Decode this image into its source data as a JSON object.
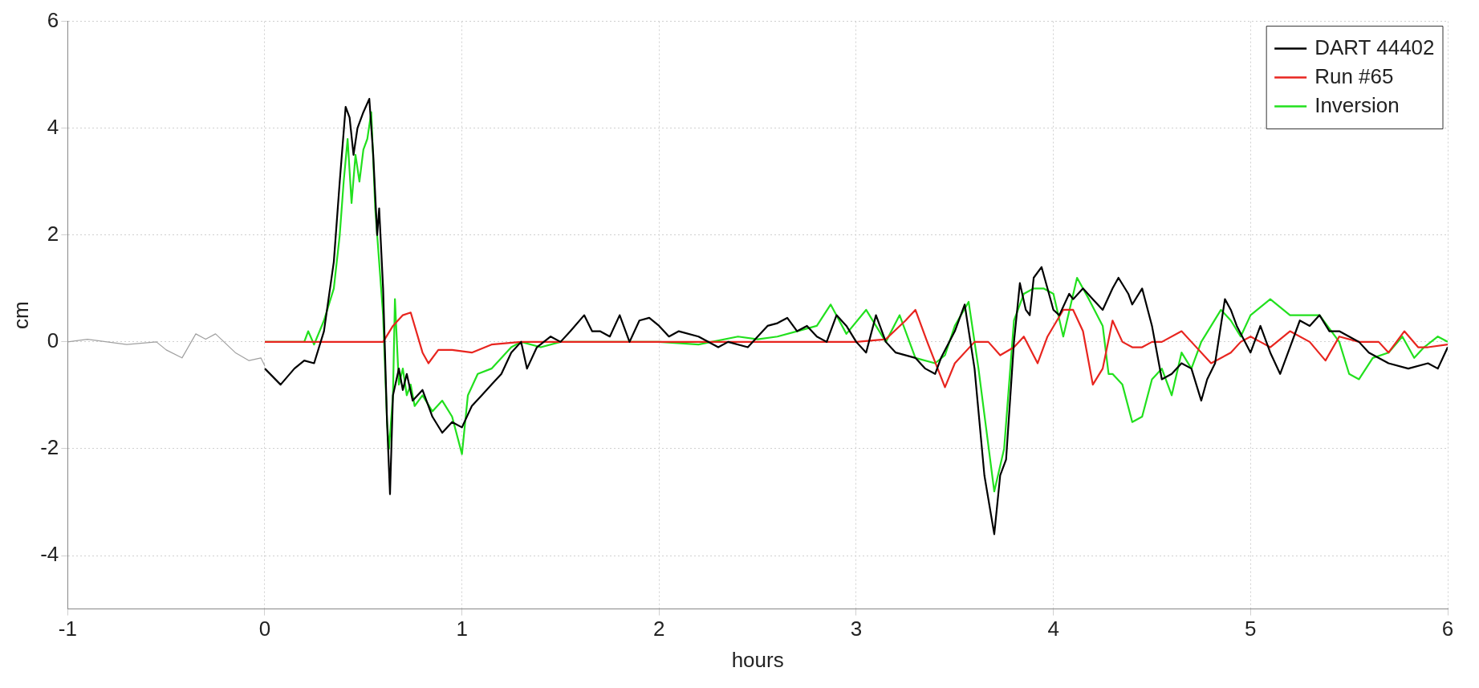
{
  "chart_data": {
    "type": "line",
    "xlabel": "hours",
    "ylabel": "cm",
    "xlim": [
      -1,
      6
    ],
    "ylim": [
      -5,
      6
    ],
    "xticks": [
      -1,
      0,
      1,
      2,
      3,
      4,
      5,
      6
    ],
    "yticks": [
      -4,
      -2,
      0,
      2,
      4,
      6
    ],
    "grid": true,
    "legend": "top right",
    "line_style": "solid",
    "marker": "none",
    "series": [
      {
        "color": "#a0a0a0",
        "x": [
          -1,
          -0.9,
          -0.7,
          -0.55,
          -0.5,
          -0.42,
          -0.35,
          -0.3,
          -0.25,
          -0.15,
          -0.08,
          -0.02,
          0
        ],
        "values": [
          0,
          0.05,
          -0.05,
          0,
          -0.15,
          -0.3,
          0.15,
          0.05,
          0.15,
          -0.2,
          -0.35,
          -0.3,
          -0.45
        ]
      },
      {
        "name": "DART 44402",
        "color": "#000000",
        "x": [
          0,
          0.08,
          0.15,
          0.2,
          0.25,
          0.3,
          0.35,
          0.38,
          0.41,
          0.43,
          0.45,
          0.47,
          0.5,
          0.53,
          0.55,
          0.57,
          0.58,
          0.6,
          0.62,
          0.635,
          0.65,
          0.68,
          0.7,
          0.72,
          0.75,
          0.8,
          0.85,
          0.9,
          0.95,
          1.0,
          1.05,
          1.1,
          1.15,
          1.2,
          1.25,
          1.3,
          1.33,
          1.38,
          1.45,
          1.5,
          1.55,
          1.62,
          1.66,
          1.7,
          1.75,
          1.8,
          1.85,
          1.9,
          1.95,
          2.0,
          2.05,
          2.1,
          2.2,
          2.3,
          2.35,
          2.45,
          2.55,
          2.6,
          2.65,
          2.7,
          2.75,
          2.8,
          2.85,
          2.9,
          2.95,
          3.0,
          3.05,
          3.1,
          3.15,
          3.2,
          3.3,
          3.35,
          3.4,
          3.43,
          3.5,
          3.55,
          3.6,
          3.65,
          3.7,
          3.73,
          3.76,
          3.8,
          3.83,
          3.86,
          3.88,
          3.9,
          3.94,
          3.97,
          4.0,
          4.03,
          4.08,
          4.1,
          4.15,
          4.2,
          4.25,
          4.3,
          4.33,
          4.38,
          4.4,
          4.45,
          4.5,
          4.55,
          4.6,
          4.65,
          4.7,
          4.75,
          4.78,
          4.82,
          4.87,
          4.9,
          4.93,
          5.0,
          5.05,
          5.1,
          5.15,
          5.2,
          5.25,
          5.3,
          5.35,
          5.4,
          5.45,
          5.5,
          5.55,
          5.6,
          5.7,
          5.8,
          5.9,
          5.95,
          6.0
        ],
        "values": [
          -0.5,
          -0.8,
          -0.5,
          -0.35,
          -0.4,
          0.2,
          1.5,
          3.0,
          4.4,
          4.2,
          3.5,
          4.0,
          4.3,
          4.55,
          3.5,
          2.0,
          2.5,
          1.0,
          -1.5,
          -2.85,
          -1.0,
          -0.5,
          -0.9,
          -0.6,
          -1.1,
          -0.9,
          -1.4,
          -1.7,
          -1.5,
          -1.6,
          -1.2,
          -1.0,
          -0.8,
          -0.6,
          -0.2,
          0.0,
          -0.5,
          -0.1,
          0.1,
          0.0,
          0.2,
          0.5,
          0.2,
          0.2,
          0.1,
          0.5,
          0.0,
          0.4,
          0.45,
          0.3,
          0.1,
          0.2,
          0.1,
          -0.1,
          0.0,
          -0.1,
          0.3,
          0.35,
          0.45,
          0.2,
          0.3,
          0.1,
          0.0,
          0.5,
          0.3,
          0.0,
          -0.2,
          0.5,
          0.0,
          -0.2,
          -0.3,
          -0.5,
          -0.6,
          -0.3,
          0.2,
          0.7,
          -0.5,
          -2.5,
          -3.6,
          -2.5,
          -2.2,
          0.0,
          1.1,
          0.6,
          0.5,
          1.2,
          1.4,
          1.0,
          0.6,
          0.5,
          0.9,
          0.8,
          1.0,
          0.8,
          0.6,
          1.0,
          1.2,
          0.9,
          0.7,
          1.0,
          0.3,
          -0.7,
          -0.6,
          -0.4,
          -0.5,
          -1.1,
          -0.7,
          -0.4,
          0.8,
          0.6,
          0.3,
          -0.2,
          0.3,
          -0.2,
          -0.6,
          -0.1,
          0.4,
          0.3,
          0.5,
          0.2,
          0.2,
          0.1,
          0.0,
          -0.2,
          -0.4,
          -0.5,
          -0.4,
          -0.5,
          -0.1
        ]
      },
      {
        "name": "Run #65",
        "color": "#e8251f",
        "x": [
          0,
          0.6,
          0.65,
          0.7,
          0.74,
          0.8,
          0.83,
          0.88,
          0.95,
          1.05,
          1.15,
          1.3,
          3.0,
          3.15,
          3.25,
          3.3,
          3.36,
          3.45,
          3.5,
          3.6,
          3.67,
          3.73,
          3.8,
          3.85,
          3.92,
          3.97,
          4.05,
          4.1,
          4.15,
          4.2,
          4.25,
          4.3,
          4.35,
          4.4,
          4.45,
          4.5,
          4.55,
          4.65,
          4.7,
          4.8,
          4.9,
          4.95,
          5.0,
          5.05,
          5.1,
          5.2,
          5.3,
          5.38,
          5.45,
          5.55,
          5.65,
          5.7,
          5.78,
          5.85,
          5.9,
          6.0
        ],
        "values": [
          0,
          0,
          0.3,
          0.5,
          0.55,
          -0.2,
          -0.4,
          -0.15,
          -0.15,
          -0.2,
          -0.05,
          0.0,
          0.0,
          0.05,
          0.4,
          0.6,
          0.0,
          -0.85,
          -0.4,
          0.0,
          0.0,
          -0.25,
          -0.1,
          0.1,
          -0.4,
          0.1,
          0.6,
          0.6,
          0.2,
          -0.8,
          -0.5,
          0.4,
          0.0,
          -0.1,
          -0.1,
          0.0,
          0.0,
          0.2,
          0.0,
          -0.4,
          -0.2,
          0.0,
          0.1,
          0.0,
          -0.1,
          0.2,
          0.0,
          -0.35,
          0.1,
          0.0,
          0.0,
          -0.2,
          0.2,
          -0.1,
          -0.1,
          -0.05
        ]
      },
      {
        "name": "Inversion",
        "color": "#22e01e",
        "x": [
          0,
          0.15,
          0.2,
          0.22,
          0.25,
          0.3,
          0.35,
          0.38,
          0.4,
          0.42,
          0.44,
          0.46,
          0.48,
          0.5,
          0.52,
          0.54,
          0.56,
          0.6,
          0.62,
          0.63,
          0.65,
          0.66,
          0.68,
          0.7,
          0.72,
          0.74,
          0.76,
          0.8,
          0.85,
          0.9,
          0.95,
          1.0,
          1.03,
          1.08,
          1.15,
          1.25,
          1.3,
          1.4,
          1.5,
          1.8,
          2.0,
          2.2,
          2.4,
          2.5,
          2.6,
          2.7,
          2.8,
          2.87,
          2.95,
          3.05,
          3.15,
          3.22,
          3.3,
          3.4,
          3.45,
          3.5,
          3.57,
          3.62,
          3.7,
          3.75,
          3.8,
          3.85,
          3.9,
          3.95,
          4.0,
          4.05,
          4.12,
          4.18,
          4.25,
          4.28,
          4.3,
          4.35,
          4.4,
          4.45,
          4.5,
          4.55,
          4.6,
          4.65,
          4.7,
          4.75,
          4.8,
          4.85,
          4.9,
          4.95,
          5.0,
          5.1,
          5.2,
          5.3,
          5.35,
          5.45,
          5.5,
          5.55,
          5.62,
          5.7,
          5.77,
          5.83,
          5.88,
          5.95,
          6.0
        ],
        "values": [
          0,
          0,
          0.0,
          0.2,
          -0.05,
          0.4,
          1.0,
          2.0,
          3.0,
          3.8,
          2.6,
          3.5,
          3.0,
          3.6,
          3.8,
          4.3,
          2.5,
          0.5,
          -1.5,
          -2.0,
          -1.0,
          0.8,
          -0.8,
          -0.5,
          -1.0,
          -0.8,
          -1.2,
          -1.0,
          -1.3,
          -1.1,
          -1.4,
          -2.1,
          -1.0,
          -0.6,
          -0.5,
          -0.1,
          0.0,
          -0.1,
          0.0,
          0.0,
          0.0,
          -0.05,
          0.1,
          0.05,
          0.1,
          0.2,
          0.3,
          0.7,
          0.15,
          0.6,
          0.0,
          0.5,
          -0.3,
          -0.4,
          -0.25,
          0.3,
          0.75,
          -0.5,
          -2.8,
          -2.0,
          0.4,
          0.9,
          1.0,
          1.0,
          0.9,
          0.1,
          1.2,
          0.8,
          0.3,
          -0.6,
          -0.6,
          -0.8,
          -1.5,
          -1.4,
          -0.7,
          -0.5,
          -1.0,
          -0.2,
          -0.5,
          0.0,
          0.3,
          0.6,
          0.4,
          0.1,
          0.5,
          0.8,
          0.5,
          0.5,
          0.5,
          0.0,
          -0.6,
          -0.7,
          -0.3,
          -0.2,
          0.1,
          -0.3,
          -0.1,
          0.1,
          0.0
        ]
      }
    ]
  }
}
